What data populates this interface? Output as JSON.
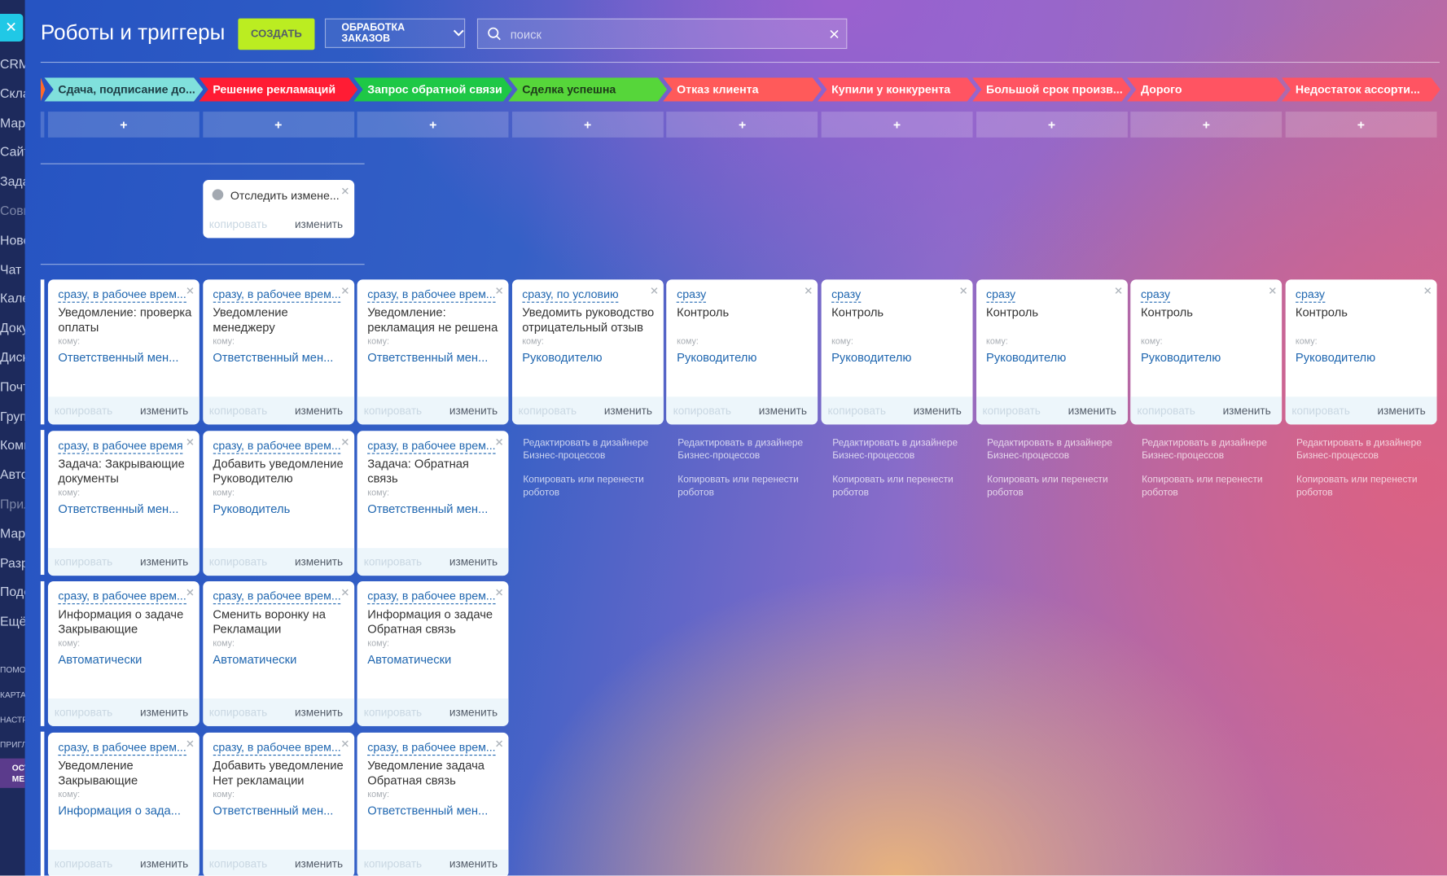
{
  "header": {
    "title": "Роботы и триггеры",
    "create_button": "СОЗДАТЬ",
    "pipeline_dropdown": "ОБРАБОТКА ЗАКАЗОВ",
    "search_placeholder": "поиск"
  },
  "sidebar": {
    "items": [
      "CRM",
      "Скла",
      "Мар",
      "Сайт",
      "Зада",
      "Совм",
      "Новс",
      "Чат и",
      "Кале",
      "Доку",
      "Диск",
      "Почт",
      "Груп",
      "Комг",
      "Авто",
      "Прил",
      "Мар",
      "Разр",
      "Поде",
      "Ещё"
    ],
    "small_items": [
      "ПОМО",
      "КАРТА",
      "НАСТР",
      "ПРИГЛ"
    ],
    "badge": [
      "ОСТ",
      "МЕ"
    ]
  },
  "labels": {
    "add": "+",
    "to": "кому:",
    "copy": "копировать",
    "edit": "изменить",
    "designer_link": "Редактировать в дизайнере Бизнес-процессов",
    "copy_move_link": "Копировать или перенести роботов"
  },
  "stages": [
    {
      "name": "Сдача, подписание до...",
      "color": "#80e0dc",
      "text_color": "#1d3c44"
    },
    {
      "name": "Решение рекламаций",
      "color": "#ff1c34",
      "text_color": "#ffffff"
    },
    {
      "name": "Запрос обратной связи",
      "color": "#1ec846",
      "text_color": "#ffffff"
    },
    {
      "name": "Сделка успешна",
      "color": "#56d63a",
      "text_color": "#1d3a1a"
    },
    {
      "name": "Отказ клиента",
      "color": "#ff5a5a",
      "text_color": "#ffffff"
    },
    {
      "name": "Купили у конкурента",
      "color": "#ff5462",
      "text_color": "#ffffff"
    },
    {
      "name": "Большой срок произв...",
      "color": "#ff5462",
      "text_color": "#ffffff"
    },
    {
      "name": "Дорого",
      "color": "#ff5462",
      "text_color": "#ffffff"
    },
    {
      "name": "Недостаток ассорти...",
      "color": "#ff5462",
      "text_color": "#ffffff"
    }
  ],
  "triggers": [
    {
      "column": 1,
      "name": "Отследить измене..."
    }
  ],
  "robot_columns": [
    [
      {
        "condition": "сразу, в рабочее врем...",
        "name": "Уведомление: проверка оплаты",
        "recipient": "Ответственный мен..."
      },
      {
        "condition": "сразу, в рабочее время",
        "name": "Задача: Закрывающие документы",
        "recipient": "Ответственный мен..."
      },
      {
        "condition": "сразу, в рабочее врем...",
        "name": "Информация о задаче Закрывающие",
        "recipient": "Автоматически"
      },
      {
        "condition": "сразу, в рабочее врем...",
        "name": "Уведомление Закрывающие",
        "recipient": "Информация о зада..."
      }
    ],
    [
      {
        "condition": "сразу, в рабочее врем...",
        "name": "Уведомление менеджеру",
        "recipient": "Ответственный мен..."
      },
      {
        "condition": "сразу, в рабочее врем...",
        "name": "Добавить уведомление Руководителю",
        "recipient": "Руководитель"
      },
      {
        "condition": "сразу, в рабочее врем...",
        "name": "Сменить воронку на Рекламации",
        "recipient": "Автоматически"
      },
      {
        "condition": "сразу, в рабочее врем...",
        "name": "Добавить уведомление Нет рекламации",
        "recipient": "Ответственный мен..."
      }
    ],
    [
      {
        "condition": "сразу, в рабочее врем...",
        "name": "Уведомление: рекламация не решена",
        "recipient": "Ответственный мен..."
      },
      {
        "condition": "сразу, в рабочее врем...",
        "name": "Задача: Обратная связь",
        "recipient": "Ответственный мен..."
      },
      {
        "condition": "сразу, в рабочее врем...",
        "name": "Информация о задаче Обратная связь",
        "recipient": "Автоматически"
      },
      {
        "condition": "сразу, в рабочее врем...",
        "name": "Уведомление задача Обратная связь",
        "recipient": "Ответственный мен..."
      }
    ],
    [
      {
        "condition": "сразу, по условию",
        "name": "Уведомить руководство отрицательный отзыв",
        "recipient": "Руководителю"
      }
    ],
    [
      {
        "condition": "сразу",
        "name": "Контроль",
        "recipient": "Руководителю"
      }
    ],
    [
      {
        "condition": "сразу",
        "name": "Контроль",
        "recipient": "Руководителю"
      }
    ],
    [
      {
        "condition": "сразу",
        "name": "Контроль",
        "recipient": "Руководителю"
      }
    ],
    [
      {
        "condition": "сразу",
        "name": "Контроль",
        "recipient": "Руководителю"
      }
    ],
    [
      {
        "condition": "сразу",
        "name": "Контроль",
        "recipient": "Руководителю"
      }
    ]
  ]
}
